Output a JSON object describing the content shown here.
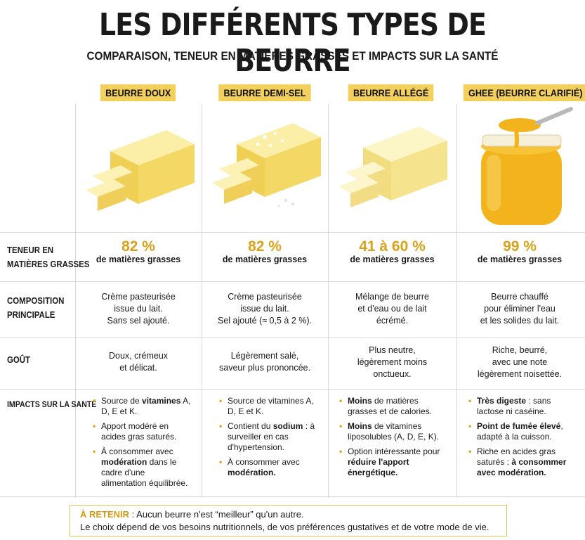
{
  "title": "LES DIFFÉRENTS TYPES DE BEURRE",
  "subtitle": "COMPARAISON, TENEUR EN MATIÈRES GRASSES ET IMPACTS SUR LA SANTÉ",
  "columns": [
    {
      "name": "BEURRE DOUX",
      "fat": "82 %",
      "fat_label": "de matières grasses",
      "composition": [
        "Crème pasteurisée",
        "issue du lait.",
        "Sans sel ajouté."
      ],
      "taste": [
        "Doux, crémeux",
        "et délicat."
      ],
      "health": [
        [
          {
            "t": "Source de "
          },
          {
            "t": "vitamines",
            "b": true
          },
          {
            "t": " A, D, E et K."
          }
        ],
        [
          {
            "t": "Apport modéré en acides gras saturés."
          }
        ],
        [
          {
            "t": "À consommer avec "
          },
          {
            "t": "modération",
            "b": true
          },
          {
            "t": " dans le cadre d'une alimentation équilibrée."
          }
        ]
      ]
    },
    {
      "name": "BEURRE DEMI-SEL",
      "fat": "82 %",
      "fat_label": "de matières grasses",
      "composition": [
        "Crème pasteurisée",
        "issue du lait.",
        "Sel ajouté (≈ 0,5 à 2 %)."
      ],
      "taste": [
        "Légèrement salé,",
        "saveur plus prononcée."
      ],
      "health": [
        [
          {
            "t": "Source de vitamines A, D, E et K."
          }
        ],
        [
          {
            "t": "Contient du "
          },
          {
            "t": "sodium",
            "b": true
          },
          {
            "t": " : à surveiller en cas d'hypertension."
          }
        ],
        [
          {
            "t": "À consommer avec "
          },
          {
            "t": "modération.",
            "b": true
          }
        ]
      ]
    },
    {
      "name": "BEURRE ALLÉGÉ",
      "fat": "41 à 60 %",
      "fat_label": "de matières grasses",
      "composition": [
        "Mélange de beurre",
        "et d'eau ou de lait",
        "écrémé."
      ],
      "taste": [
        "Plus neutre,",
        "légèrement moins",
        "onctueux."
      ],
      "health": [
        [
          {
            "t": "Moins",
            "b": true
          },
          {
            "t": " de matières grasses et de calories."
          }
        ],
        [
          {
            "t": "Moins",
            "b": true
          },
          {
            "t": " de vitamines liposolubles (A, D, E, K)."
          }
        ],
        [
          {
            "t": "Option intéressante pour "
          },
          {
            "t": "réduire l'apport énergétique.",
            "b": true
          }
        ]
      ]
    },
    {
      "name": "GHEE (BEURRE CLARIFIÉ)",
      "fat": "99 %",
      "fat_label": "de matières grasses",
      "composition": [
        "Beurre chauffé",
        "pour éliminer l'eau",
        "et les solides du lait."
      ],
      "taste": [
        "Riche, beurré,",
        "avec une note",
        "légèrement noisettée."
      ],
      "health": [
        [
          {
            "t": "Très digeste",
            "b": true
          },
          {
            "t": " : sans lactose ni caséine."
          }
        ],
        [
          {
            "t": "Point de fumée élevé",
            "b": true
          },
          {
            "t": ", adapté à la cuisson."
          }
        ],
        [
          {
            "t": "Riche en acides gras saturés : "
          },
          {
            "t": "à consommer avec modération.",
            "b": true
          }
        ]
      ]
    }
  ],
  "row_labels": {
    "fat": [
      "TENEUR EN",
      "MATIÈRES GRASSES"
    ],
    "composition": [
      "COMPOSITION",
      "PRINCIPALE"
    ],
    "taste": [
      "GOÛT"
    ],
    "health": [
      "IMPACTS SUR LA SANTÉ"
    ]
  },
  "retain": {
    "keyword": "À RETENIR",
    "line1": " : Aucun beurre n'est “meilleur” qu'un autre.",
    "line2": "Le choix dépend de vos besoins nutritionnels, de vos préférences gustatives et de votre mode de vie."
  },
  "colors": {
    "accent": "#f3cf5c",
    "gold_text": "#d9a21a",
    "butter": "#f7e48a",
    "ghee": "#f2b31c"
  }
}
